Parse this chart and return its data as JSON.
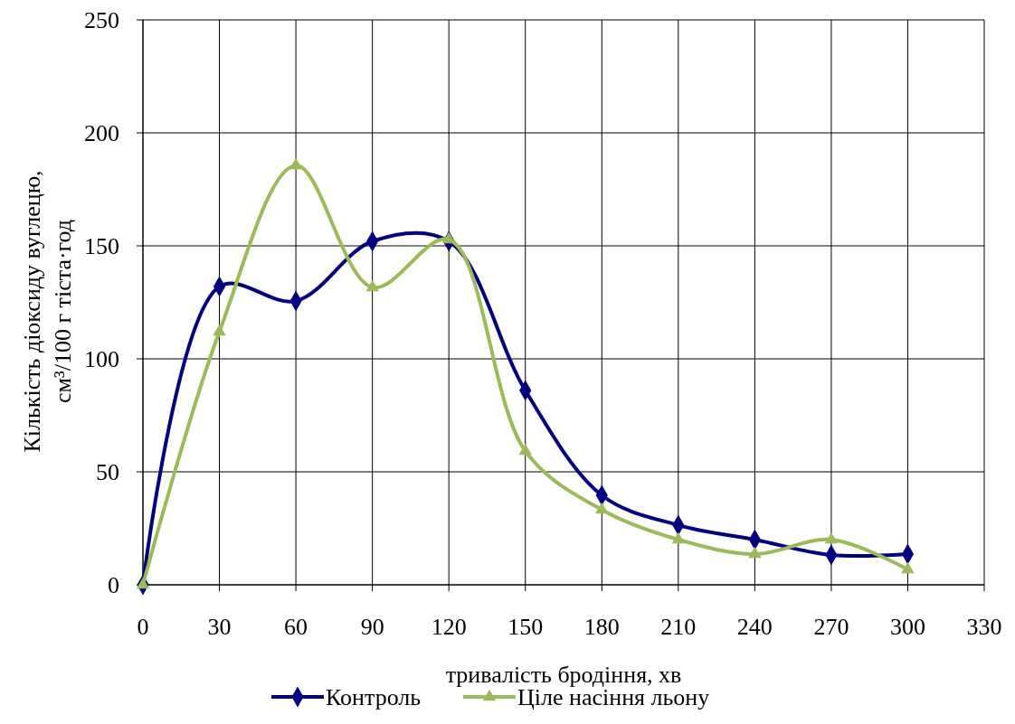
{
  "chart_data": {
    "type": "line",
    "xlabel": "тривалість бродіння, хв",
    "ylabel": "Кількість діоксиду вуглецю,\nсм³/100 г тіста·год",
    "x": [
      0,
      30,
      60,
      90,
      120,
      150,
      180,
      210,
      240,
      270,
      300
    ],
    "series": [
      {
        "name": "Контроль",
        "color": "#000080",
        "marker": "diamond",
        "values": [
          0,
          132,
          125.6,
          152,
          152,
          86,
          39.6,
          26.4,
          20,
          13.2,
          13.6
        ]
      },
      {
        "name": "Ціле насіння льону",
        "color": "#9bbb59",
        "marker": "triangle",
        "values": [
          0,
          112,
          185.6,
          131.6,
          152.8,
          59.2,
          33.2,
          20,
          13.6,
          20,
          6.8
        ]
      }
    ],
    "xlim": [
      0,
      330
    ],
    "xticks": [
      0,
      30,
      60,
      90,
      120,
      150,
      180,
      210,
      240,
      270,
      300,
      330
    ],
    "ylim": [
      0,
      250
    ],
    "yticks": [
      0,
      50,
      100,
      150,
      200,
      250
    ],
    "grid": true,
    "legend": "bottom",
    "line_style": "solid"
  }
}
